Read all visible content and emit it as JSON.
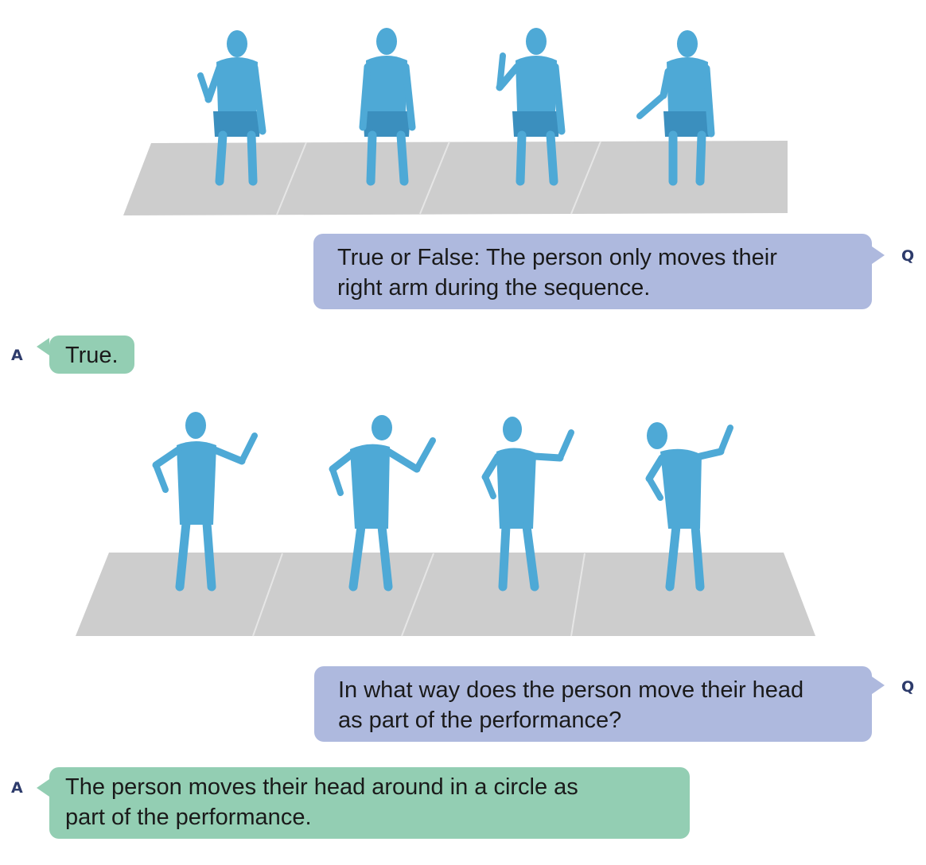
{
  "colors": {
    "body": "#4ea9d6",
    "body_shadow": "#3b8fbe",
    "floor": "#cdcdcd",
    "question_bubble": "#aeb9de",
    "answer_bubble": "#93ceb3",
    "speaker_label": "#2d3b6b"
  },
  "exchanges": [
    {
      "scene": "seated-human-mesh-sequence",
      "question": {
        "speaker": "Q",
        "lines": [
          "True or False: The person only moves their",
          "right arm during the sequence."
        ]
      },
      "answer": {
        "speaker": "A",
        "lines": [
          "True."
        ]
      }
    },
    {
      "scene": "standing-human-mesh-sequence",
      "question": {
        "speaker": "Q",
        "lines": [
          "In what way does the person move their head",
          "as part of the performance?"
        ]
      },
      "answer": {
        "speaker": "A",
        "lines": [
          "The person moves their head around in a circle as",
          "part of the performance."
        ]
      }
    }
  ]
}
